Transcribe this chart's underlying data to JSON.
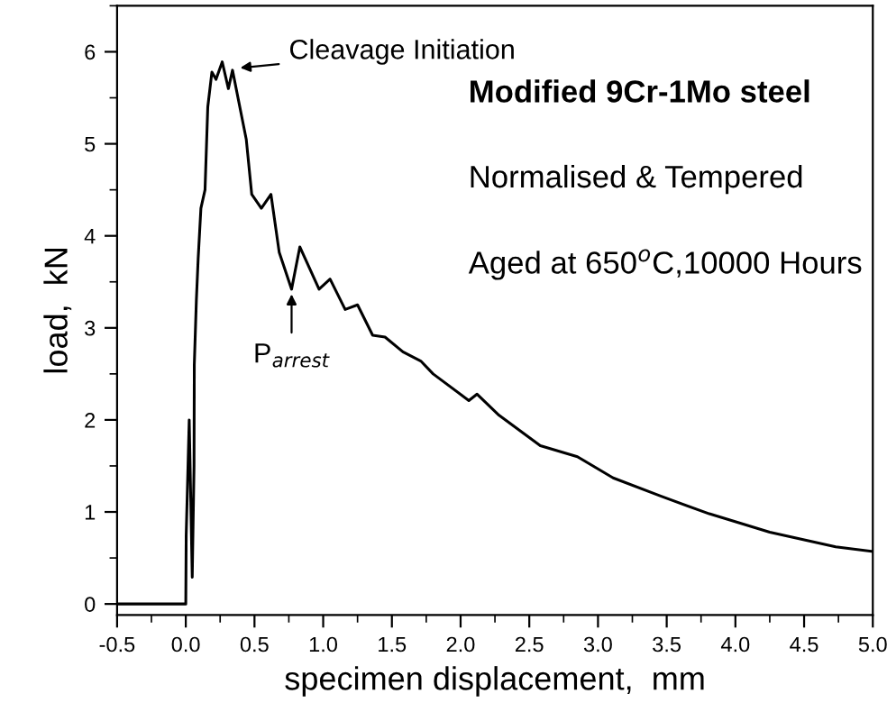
{
  "chart_data": {
    "type": "line",
    "xlabel": "specimen displacement,  mm",
    "ylabel": "load,  kN",
    "xlim": [
      -0.5,
      5.0
    ],
    "xticks": [
      {
        "value": -0.5,
        "label": "-0.5"
      },
      {
        "value": 0.0,
        "label": "0.0"
      },
      {
        "value": 0.5,
        "label": "0.5"
      },
      {
        "value": 1.0,
        "label": "1.0"
      },
      {
        "value": 1.5,
        "label": "1.5"
      },
      {
        "value": 2.0,
        "label": "2.0"
      },
      {
        "value": 2.5,
        "label": "2.5"
      },
      {
        "value": 3.0,
        "label": "3.0"
      },
      {
        "value": 3.5,
        "label": "3.5"
      },
      {
        "value": 4.0,
        "label": "4.0"
      },
      {
        "value": 4.5,
        "label": "4.5"
      },
      {
        "value": 5.0,
        "label": "5.0"
      }
    ],
    "ylim": [
      -0.12,
      6.5
    ],
    "yticks": [
      0,
      1,
      2,
      3,
      4,
      5,
      6
    ],
    "grid": false,
    "marker": "none",
    "line_style": "solid",
    "series": [
      {
        "color": "#000000",
        "x": [
          -0.5,
          0.0,
          0.003,
          0.025,
          0.047,
          0.06,
          0.062,
          0.077,
          0.09,
          0.11,
          0.14,
          0.16,
          0.19,
          0.22,
          0.265,
          0.31,
          0.34,
          0.44,
          0.48,
          0.55,
          0.62,
          0.68,
          0.77,
          0.83,
          0.97,
          1.05,
          1.16,
          1.25,
          1.36,
          1.45,
          1.58,
          1.71,
          1.8,
          2.06,
          2.12,
          2.28,
          2.58,
          2.85,
          3.11,
          3.46,
          3.81,
          4.25,
          4.73,
          5.0
        ],
        "values": [
          0,
          0,
          0.75,
          2.0,
          0.29,
          1.5,
          2.6,
          3.3,
          3.75,
          4.3,
          4.5,
          5.4,
          5.78,
          5.7,
          5.89,
          5.6,
          5.8,
          5.05,
          4.45,
          4.3,
          4.45,
          3.82,
          3.42,
          3.88,
          3.42,
          3.53,
          3.2,
          3.25,
          2.92,
          2.9,
          2.74,
          2.64,
          2.5,
          2.21,
          2.28,
          2.05,
          1.72,
          1.6,
          1.37,
          1.17,
          0.98,
          0.78,
          0.62,
          0.57
        ]
      }
    ],
    "annotations": [
      {
        "text": "Cleavage Initiation",
        "x": 0.36,
        "y": 5.82
      },
      {
        "text": "P$_{arrest}$",
        "x": 0.77,
        "y": 3.42
      },
      "Modified 9Cr-1Mo steel",
      "Normalised & Tempered",
      "Aged at 650$^{o}$C,10000 Hours"
    ]
  }
}
